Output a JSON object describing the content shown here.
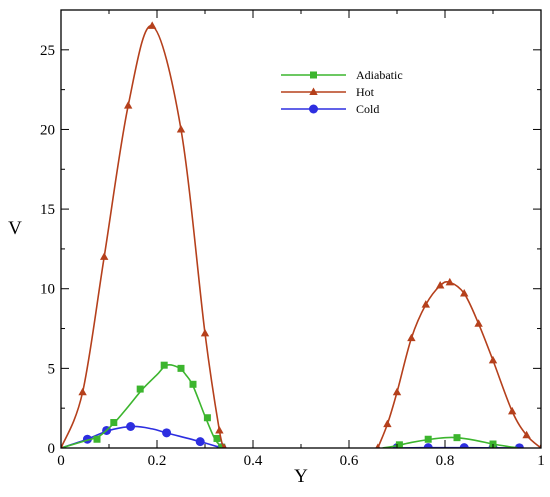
{
  "chart_data": {
    "type": "line",
    "title": "",
    "xlabel": "Y",
    "ylabel": "V",
    "xlim": [
      0,
      1
    ],
    "ylim": [
      0,
      27.5
    ],
    "x_ticks": [
      0,
      0.2,
      0.4,
      0.6,
      0.8,
      1
    ],
    "x_tick_labels": [
      "0",
      "0.2",
      "0.4",
      "0.6",
      "0.8",
      "1"
    ],
    "y_ticks": [
      0,
      5,
      10,
      15,
      20,
      25
    ],
    "y_tick_labels": [
      "0",
      "5",
      "10",
      "15",
      "20",
      "25"
    ],
    "grid": false,
    "legend_position": "top-right",
    "series": [
      {
        "name": "Adiabatic",
        "color": "#3cb52e",
        "marker": "square",
        "segments": [
          [
            [
              0,
              0
            ],
            [
              0.05,
              0.45
            ],
            [
              0.08,
              0.75
            ],
            [
              0.11,
              1.55
            ],
            [
              0.14,
              2.6
            ],
            [
              0.17,
              3.7
            ],
            [
              0.2,
              4.6
            ],
            [
              0.22,
              5.2
            ],
            [
              0.245,
              5.05
            ],
            [
              0.26,
              4.6
            ],
            [
              0.275,
              3.9
            ],
            [
              0.3,
              2.0
            ],
            [
              0.32,
              0.6
            ],
            [
              0.335,
              0.05
            ]
          ],
          [
            [
              0.67,
              0
            ],
            [
              0.7,
              0.15
            ],
            [
              0.73,
              0.35
            ],
            [
              0.77,
              0.55
            ],
            [
              0.8,
              0.65
            ],
            [
              0.825,
              0.65
            ],
            [
              0.86,
              0.5
            ],
            [
              0.9,
              0.25
            ],
            [
              0.93,
              0.1
            ],
            [
              0.95,
              0.02
            ]
          ]
        ],
        "markers": [
          [
            [
              0.075,
              0.55
            ],
            [
              0.11,
              1.6
            ],
            [
              0.165,
              3.7
            ],
            [
              0.215,
              5.2
            ],
            [
              0.25,
              5.0
            ],
            [
              0.275,
              4.0
            ],
            [
              0.305,
              1.9
            ],
            [
              0.325,
              0.6
            ],
            [
              0.335,
              0.05
            ]
          ],
          [
            [
              0.705,
              0.2
            ],
            [
              0.765,
              0.55
            ],
            [
              0.825,
              0.65
            ],
            [
              0.9,
              0.25
            ]
          ]
        ]
      },
      {
        "name": "Hot",
        "color": "#b5401c",
        "marker": "triangle",
        "segments": [
          [
            [
              0,
              0
            ],
            [
              0.045,
              3.5
            ],
            [
              0.09,
              12.0
            ],
            [
              0.14,
              21.5
            ],
            [
              0.19,
              26.5
            ],
            [
              0.25,
              20.0
            ],
            [
              0.3,
              7.2
            ],
            [
              0.33,
              1.1
            ],
            [
              0.34,
              0
            ]
          ],
          [
            [
              0.66,
              0
            ],
            [
              0.68,
              1.5
            ],
            [
              0.7,
              3.5
            ],
            [
              0.73,
              6.9
            ],
            [
              0.76,
              9.0
            ],
            [
              0.79,
              10.2
            ],
            [
              0.81,
              10.4
            ],
            [
              0.84,
              9.7
            ],
            [
              0.87,
              7.8
            ],
            [
              0.9,
              5.5
            ],
            [
              0.94,
              2.3
            ],
            [
              0.97,
              0.8
            ],
            [
              1.0,
              0
            ]
          ]
        ]
      },
      {
        "name": "Cold",
        "color": "#2d2ee0",
        "marker": "circle",
        "segments": [
          [
            [
              0,
              0
            ],
            [
              0.05,
              0.5
            ],
            [
              0.1,
              1.1
            ],
            [
              0.15,
              1.35
            ],
            [
              0.19,
              1.2
            ],
            [
              0.22,
              0.95
            ],
            [
              0.29,
              0.4
            ],
            [
              0.335,
              0
            ]
          ],
          [
            [
              0.7,
              0
            ],
            [
              0.76,
              0.02
            ],
            [
              0.84,
              0.02
            ],
            [
              0.9,
              0.01
            ],
            [
              0.96,
              0
            ]
          ]
        ],
        "markers": [
          [
            [
              0.055,
              0.55
            ],
            [
              0.095,
              1.1
            ],
            [
              0.145,
              1.35
            ],
            [
              0.22,
              0.95
            ],
            [
              0.29,
              0.4
            ],
            [
              0.335,
              0.02
            ]
          ],
          [
            [
              0.7,
              0.02
            ],
            [
              0.765,
              0.02
            ],
            [
              0.84,
              0.02
            ],
            [
              0.9,
              0.01
            ],
            [
              0.955,
              0.01
            ]
          ]
        ]
      }
    ]
  }
}
